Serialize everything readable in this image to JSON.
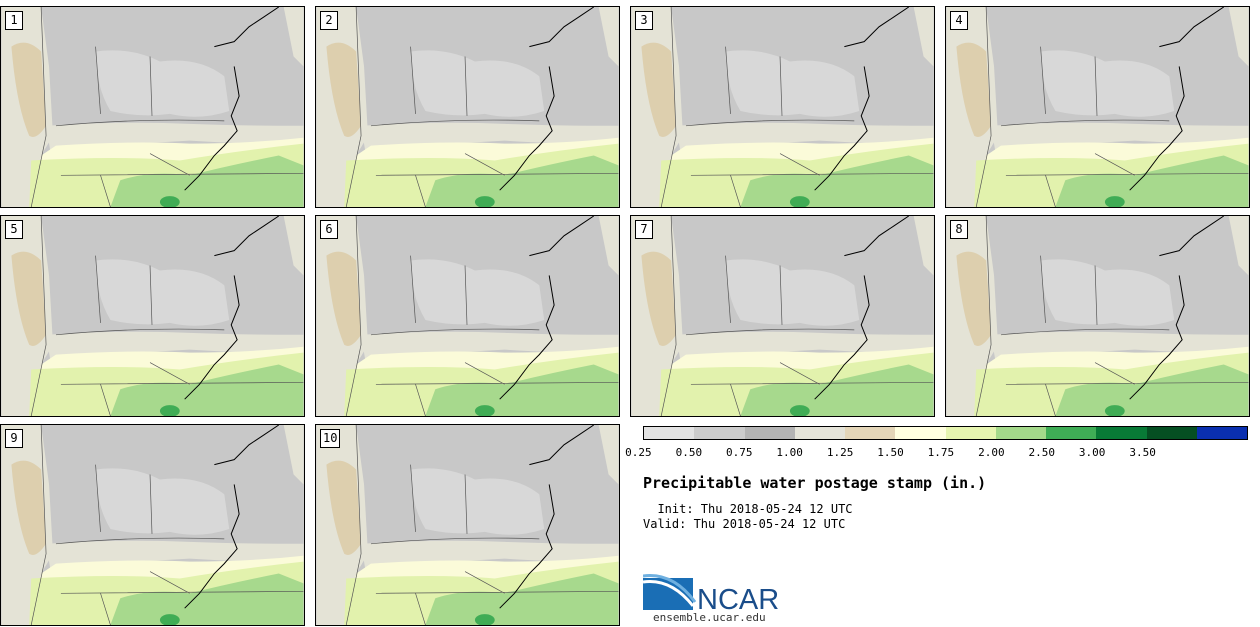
{
  "panels": [
    {
      "label": "1"
    },
    {
      "label": "2"
    },
    {
      "label": "3"
    },
    {
      "label": "4"
    },
    {
      "label": "5"
    },
    {
      "label": "6"
    },
    {
      "label": "7"
    },
    {
      "label": "8"
    },
    {
      "label": "9"
    },
    {
      "label": "10"
    }
  ],
  "legend": {
    "colors": [
      "#e3e3e3",
      "#cccccc",
      "#b4b4b4",
      "#e5e4d9",
      "#e4d6b8",
      "#ffffe0",
      "#e6f5b0",
      "#a4d98a",
      "#3fad56",
      "#087a36",
      "#054f22",
      "#0a2fb0"
    ],
    "ticks": [
      "0.25",
      "0.50",
      "0.75",
      "1.00",
      "1.25",
      "1.50",
      "1.75",
      "2.00",
      "2.50",
      "3.00",
      "3.50"
    ]
  },
  "title": "Precipitable water postage stamp (in.)",
  "init": "  Init: Thu 2018-05-24 12 UTC",
  "valid": "Valid: Thu 2018-05-24 12 UTC",
  "logo_text": "NCAR",
  "website": "ensemble.ucar.edu"
}
